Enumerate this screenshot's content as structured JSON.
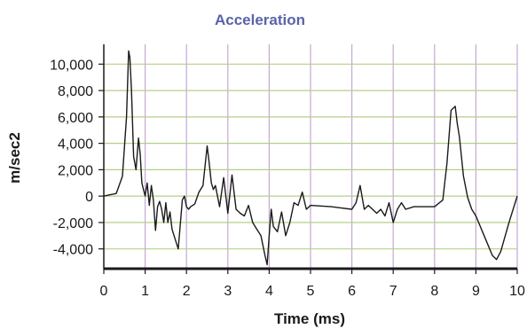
{
  "chart_data": {
    "type": "line",
    "title": "Acceleration",
    "xlabel": "Time (ms)",
    "ylabel": "m/sec2",
    "xlim": [
      0,
      10
    ],
    "ylim": [
      -5500,
      11500
    ],
    "x_ticks": [
      0,
      1,
      2,
      3,
      4,
      5,
      6,
      7,
      8,
      9,
      10
    ],
    "x_tick_labels": [
      "0",
      "1",
      "2",
      "3",
      "4",
      "5",
      "6",
      "7",
      "8",
      "9",
      "10"
    ],
    "y_ticks": [
      10000,
      8000,
      6000,
      4000,
      2000,
      0,
      -2000,
      -4000
    ],
    "y_tick_labels": [
      "10,000",
      "8,000",
      "6,000",
      "4,000",
      "2,000",
      "0",
      "-2,000",
      "-4,000"
    ],
    "grid": true,
    "colors": {
      "title": "#5a63a8",
      "line": "#1a1a1a",
      "grid_vertical": "#c4a8d4",
      "grid_horizontal": "#b5cf8a",
      "axis": "#1a1a1a"
    },
    "series": [
      {
        "x": [
          0,
          0.3,
          0.45,
          0.55,
          0.6,
          0.63,
          0.67,
          0.72,
          0.78,
          0.84,
          0.88,
          0.92,
          0.96,
          1.0,
          1.05,
          1.1,
          1.15,
          1.2,
          1.25,
          1.3,
          1.35,
          1.4,
          1.45,
          1.5,
          1.55,
          1.6,
          1.65,
          1.7,
          1.8,
          1.9,
          1.95,
          2.0,
          2.05,
          2.1,
          2.2,
          2.3,
          2.4,
          2.5,
          2.55,
          2.6,
          2.65,
          2.7,
          2.8,
          2.9,
          3.0,
          3.1,
          3.2,
          3.3,
          3.4,
          3.5,
          3.6,
          3.7,
          3.8,
          3.9,
          3.95,
          4.0,
          4.05,
          4.1,
          4.2,
          4.3,
          4.4,
          4.5,
          4.6,
          4.7,
          4.8,
          4.9,
          5.0,
          5.5,
          6.0,
          6.1,
          6.2,
          6.3,
          6.4,
          6.5,
          6.6,
          6.7,
          6.8,
          6.9,
          7.0,
          7.1,
          7.2,
          7.3,
          7.5,
          8.0,
          8.2,
          8.3,
          8.4,
          8.5,
          8.55,
          8.6,
          8.7,
          8.8,
          8.9,
          9.0,
          9.2,
          9.4,
          9.5,
          9.6,
          9.8,
          10.0
        ],
        "y": [
          0,
          200,
          1500,
          6000,
          11000,
          10500,
          8000,
          3000,
          2000,
          4400,
          3200,
          1000,
          500,
          0,
          1000,
          -700,
          800,
          -300,
          -2600,
          -800,
          -400,
          -1000,
          -2000,
          -500,
          -2000,
          -1200,
          -2500,
          -3000,
          -4000,
          -300,
          0,
          -800,
          -1000,
          -800,
          -600,
          300,
          800,
          3800,
          2500,
          1000,
          500,
          800,
          -800,
          1400,
          -1300,
          1600,
          -1000,
          -1300,
          -1500,
          -700,
          -2000,
          -2500,
          -3000,
          -4500,
          -5200,
          -3000,
          -1000,
          -2300,
          -2700,
          -1200,
          -3000,
          -2000,
          -500,
          -700,
          300,
          -1000,
          -700,
          -800,
          -1000,
          -500,
          800,
          -1000,
          -700,
          -1000,
          -1300,
          -1000,
          -1500,
          -500,
          -2000,
          -1000,
          -500,
          -1000,
          -800,
          -800,
          -300,
          2500,
          6500,
          6800,
          5500,
          4500,
          1500,
          -100,
          -1000,
          -1500,
          -3000,
          -4500,
          -4800,
          -4200,
          -2000,
          0
        ]
      }
    ]
  }
}
